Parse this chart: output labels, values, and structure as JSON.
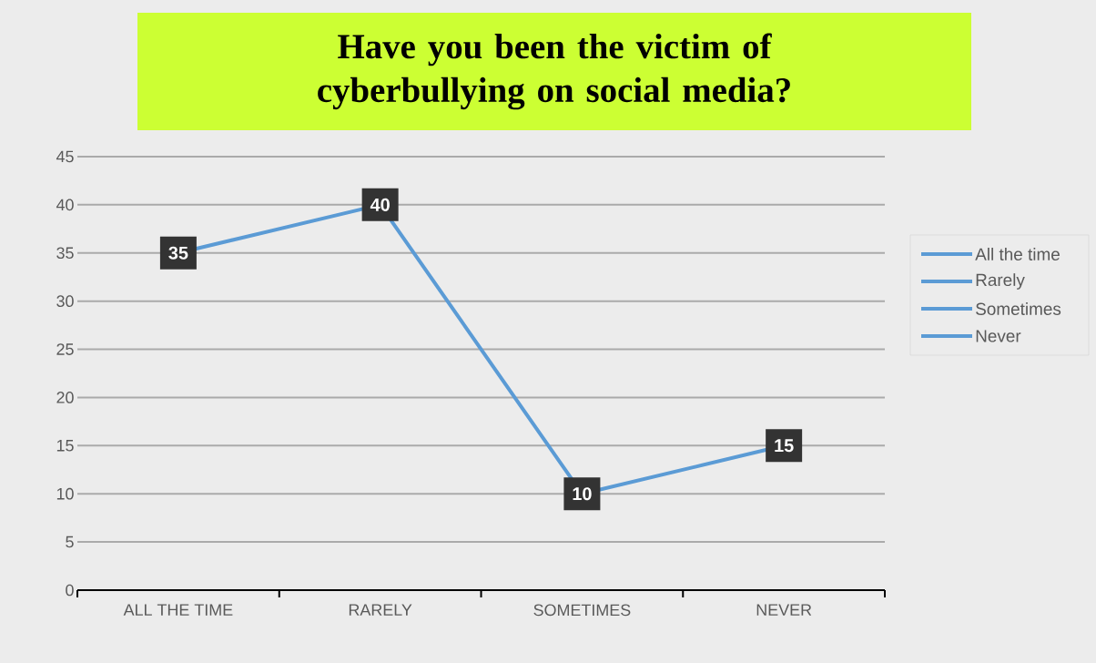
{
  "chart_data": {
    "type": "line",
    "title": "Have you been the victim of cyberbullying on social media?",
    "categories": [
      "ALL THE TIME",
      "RARELY",
      "SOMETIMES",
      "NEVER"
    ],
    "values": [
      35,
      40,
      10,
      15
    ],
    "color": "#5b9bd5",
    "ylim": [
      0,
      45
    ],
    "yticks": [
      0,
      5,
      10,
      15,
      20,
      25,
      30,
      35,
      40,
      45
    ],
    "grid": "y",
    "marker": "square",
    "line_style": "solid",
    "data_labels": true,
    "annotations": [
      "All the time",
      "Rarely",
      "Sometimes",
      "Never"
    ]
  }
}
